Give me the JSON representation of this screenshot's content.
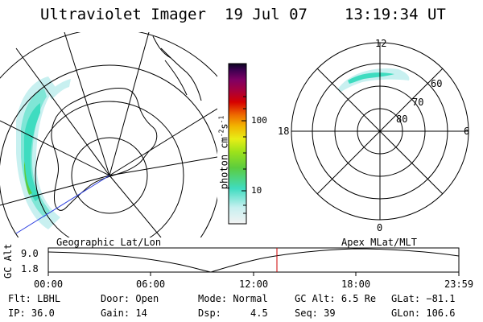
{
  "header": {
    "title": "Ultraviolet Imager",
    "date": "19 Jul 07",
    "time": "13:19:34 UT"
  },
  "left_panel": {
    "caption": "Geographic Lat/Lon"
  },
  "right_panel": {
    "caption": "Apex MLat/MLT",
    "clock_labels": [
      "12",
      "18",
      "6",
      "0"
    ],
    "lat_labels": [
      "60",
      "70",
      "80"
    ]
  },
  "colorbar": {
    "label": "photon cm",
    "label_sup": "-2",
    "label_mid": "s",
    "label_sup2": "-1",
    "ticks": [
      "100",
      "10"
    ],
    "scale": "log",
    "colors": [
      "#f3f3f3",
      "#c8f0f0",
      "#3fdcc0",
      "#5ccc3e",
      "#9ee21a",
      "#e8ee16",
      "#f2b400",
      "#ee6a00",
      "#d60000",
      "#a8003c",
      "#7e0064",
      "#3c0050",
      "#0a0420"
    ]
  },
  "altitude_plot": {
    "ylabel": "GC Alt",
    "yticks": [
      "9.0",
      "1.8"
    ],
    "xticks": [
      "00:00",
      "06:00",
      "12:00",
      "18:00",
      "23:59"
    ],
    "marker_color": "#cc0000",
    "marker_time": "13:19"
  },
  "status": {
    "row1": [
      {
        "label": "Flt:",
        "value": "LBHL"
      },
      {
        "label": "Door:",
        "value": "Open"
      },
      {
        "label": "Mode:",
        "value": "Normal"
      },
      {
        "label": "GC Alt:",
        "value": "6.5 Re"
      },
      {
        "label": "GLat:",
        "value": "−81.1"
      }
    ],
    "row2": [
      {
        "label": "IP:",
        "value": "36.0"
      },
      {
        "label": "Gain:",
        "value": "14"
      },
      {
        "label": "Dsp:",
        "value": "4.5"
      },
      {
        "label": "Seq:",
        "value": "39"
      },
      {
        "label": "GLon:",
        "value": "106.6"
      }
    ]
  }
}
